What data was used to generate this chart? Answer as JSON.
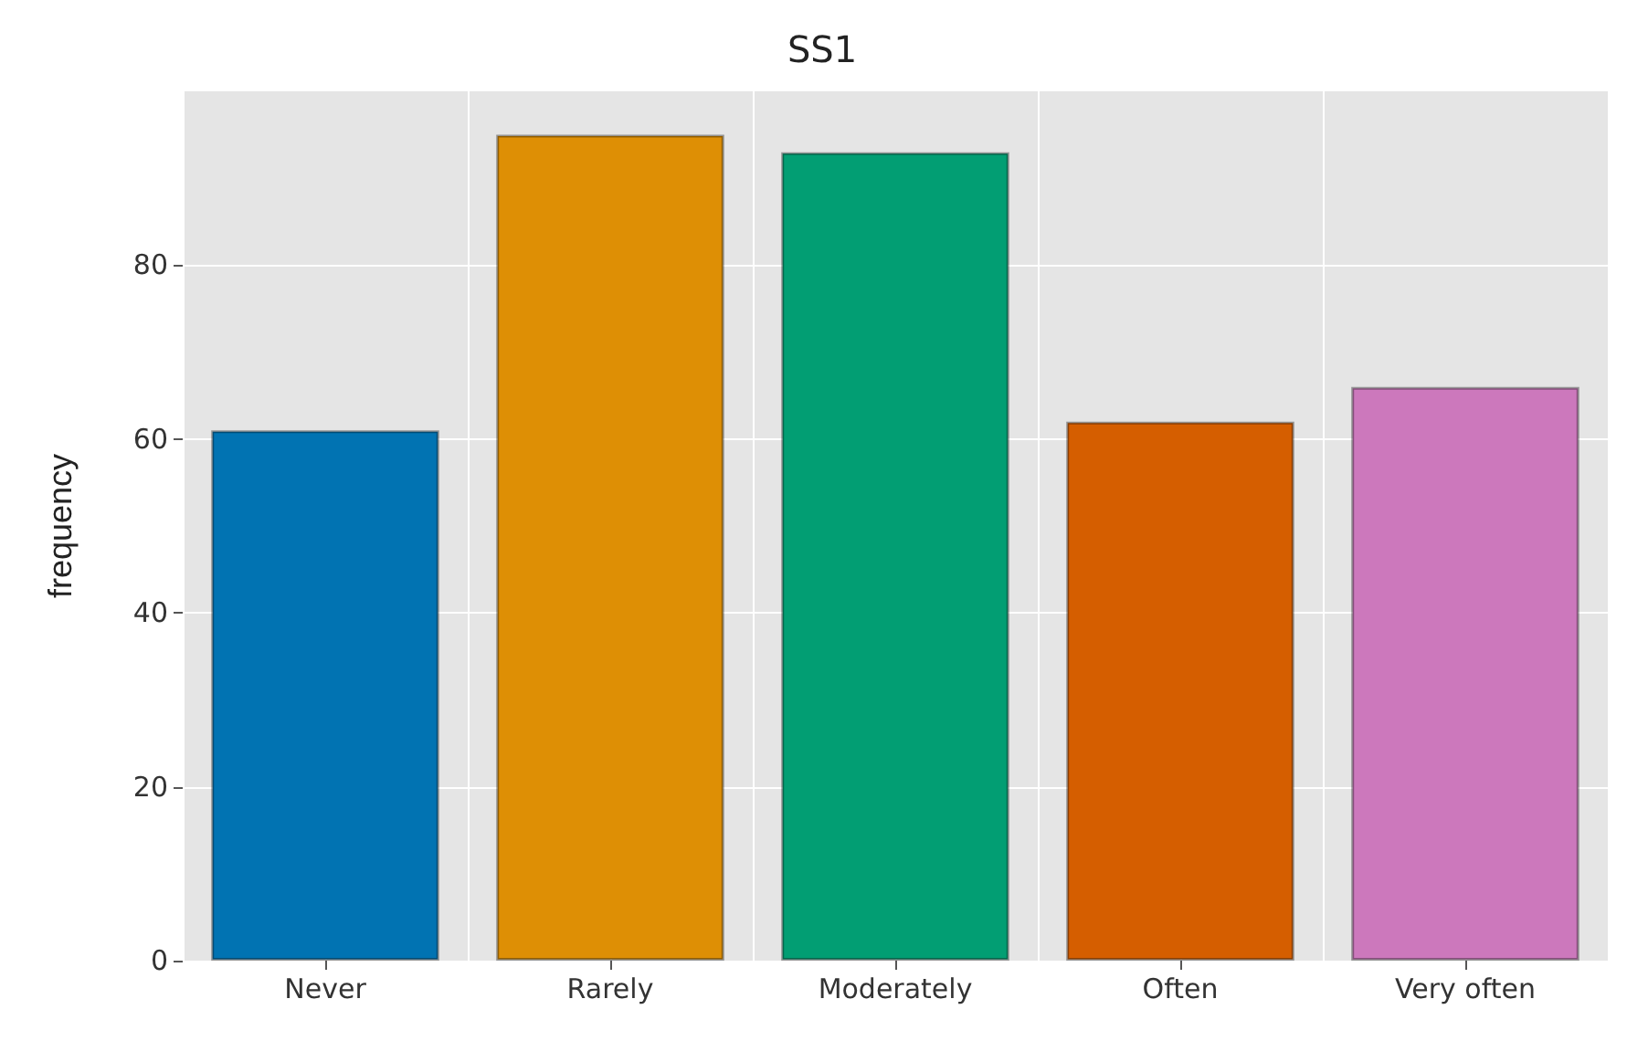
{
  "chart_data": {
    "type": "bar",
    "title": "SS1",
    "ylabel": "frequency",
    "categories": [
      "Never",
      "Rarely",
      "Moderately",
      "Often",
      "Very often"
    ],
    "values": [
      61,
      95,
      93,
      62,
      66
    ],
    "colors": [
      "#0173b2",
      "#de8f05",
      "#029e73",
      "#d55e00",
      "#cc78bc"
    ],
    "ylim": [
      0,
      100
    ],
    "yticks": [
      0,
      20,
      40,
      60,
      80
    ],
    "grid": true
  }
}
